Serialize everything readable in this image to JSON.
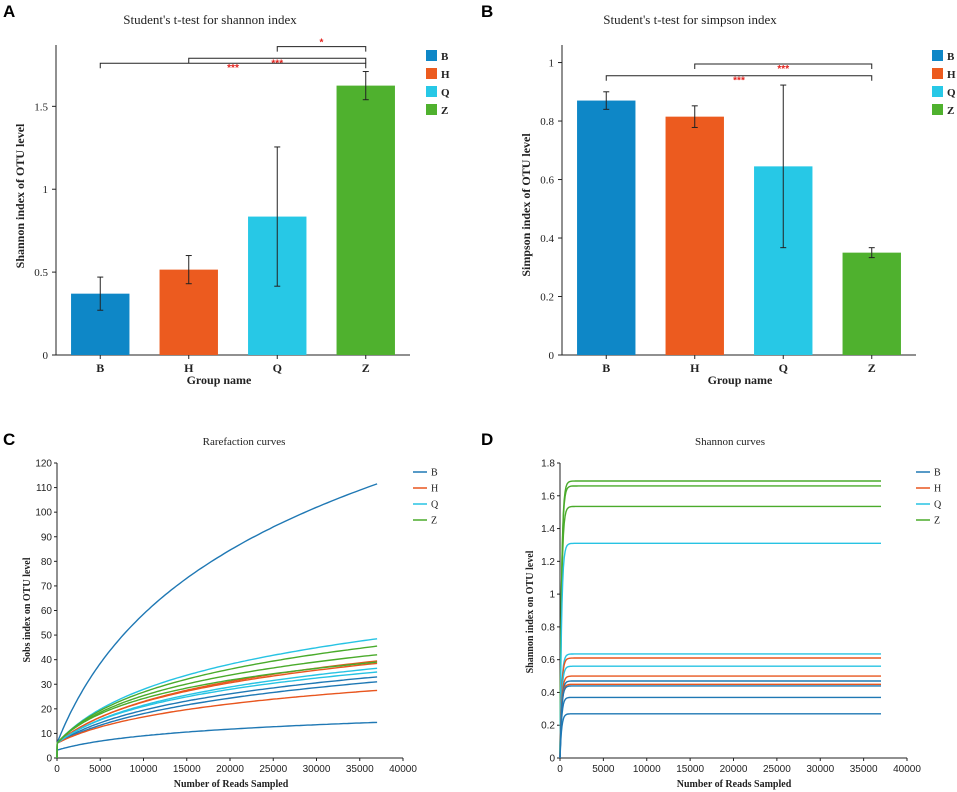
{
  "chart_data": [
    {
      "panel": "A",
      "type": "bar",
      "title": "Student's t-test for shannon index",
      "xlabel": "Group name",
      "ylabel": "Shannon index of OTU level",
      "ylim": [
        0,
        1.87
      ],
      "yticks": [
        0,
        0.5,
        1,
        1.5
      ],
      "ytick_labels": [
        "0",
        "0.5",
        "1",
        "1.5"
      ],
      "categories": [
        "B",
        "H",
        "Q",
        "Z"
      ],
      "values": [
        0.37,
        0.515,
        0.835,
        1.625
      ],
      "errors": [
        0.1,
        0.085,
        0.42,
        0.085
      ],
      "colors": [
        "#0e87c7",
        "#ec5b1f",
        "#27c8e6",
        "#4fb12e"
      ],
      "legend": [
        "B",
        "H",
        "Q",
        "Z"
      ],
      "comparisons": [
        {
          "from": "Q",
          "to": "Z",
          "label": "*",
          "level": 1.86
        },
        {
          "from": "H",
          "to": "Z",
          "label": "***",
          "level": 1.79
        },
        {
          "from": "B",
          "to": "Z",
          "label": "***",
          "level": 1.76
        }
      ]
    },
    {
      "panel": "B",
      "type": "bar",
      "title": "Student's t-test for simpson index",
      "xlabel": "Group name",
      "ylabel": "Simpson index of OTU level",
      "ylim": [
        0,
        1.06
      ],
      "yticks": [
        0,
        0.2,
        0.4,
        0.6,
        0.8,
        1
      ],
      "ytick_labels": [
        "0",
        "0.2",
        "0.4",
        "0.6",
        "0.8",
        "1"
      ],
      "categories": [
        "B",
        "H",
        "Q",
        "Z"
      ],
      "values": [
        0.87,
        0.815,
        0.645,
        0.35
      ],
      "errors": [
        0.03,
        0.037,
        0.278,
        0.017
      ],
      "colors": [
        "#0e87c7",
        "#ec5b1f",
        "#27c8e6",
        "#4fb12e"
      ],
      "legend": [
        "B",
        "H",
        "Q",
        "Z"
      ],
      "comparisons": [
        {
          "from": "H",
          "to": "Z",
          "label": "***",
          "level": 0.995
        },
        {
          "from": "B",
          "to": "Z",
          "label": "***",
          "level": 0.955
        }
      ]
    },
    {
      "panel": "C",
      "type": "line",
      "title": "Rarefaction curves",
      "xlabel": "Number of Reads Sampled",
      "ylabel": "Sobs index on OTU level",
      "xlim": [
        0,
        40000
      ],
      "ylim": [
        0,
        120
      ],
      "xticks": [
        0,
        5000,
        10000,
        15000,
        20000,
        25000,
        30000,
        35000,
        40000
      ],
      "xtick_labels": [
        "0",
        "5000",
        "10000",
        "15000",
        "20000",
        "25000",
        "30000",
        "35000",
        "40000"
      ],
      "yticks": [
        0,
        10,
        20,
        30,
        40,
        50,
        60,
        70,
        80,
        90,
        100,
        110,
        120
      ],
      "ytick_labels": [
        "0",
        "10",
        "20",
        "30",
        "40",
        "50",
        "60",
        "70",
        "80",
        "90",
        "100",
        "110",
        "120"
      ],
      "legend": [
        "B",
        "H",
        "Q",
        "Z"
      ],
      "x_end": 37000,
      "series": [
        {
          "name": "B",
          "color": "#1f78b4",
          "final": 111.5,
          "k": 6000
        },
        {
          "name": "B",
          "color": "#1f78b4",
          "final": 33,
          "k": 6000
        },
        {
          "name": "B",
          "color": "#1f78b4",
          "final": 31,
          "k": 7000
        },
        {
          "name": "B",
          "color": "#1f78b4",
          "final": 14.5,
          "k": 5000
        },
        {
          "name": "H",
          "color": "#e8561f",
          "final": 39.5,
          "k": 5500
        },
        {
          "name": "H",
          "color": "#e8561f",
          "final": 38.5,
          "k": 5000
        },
        {
          "name": "H",
          "color": "#e8561f",
          "final": 27.5,
          "k": 6000
        },
        {
          "name": "Q",
          "color": "#27c3e3",
          "final": 48.5,
          "k": 5000
        },
        {
          "name": "Q",
          "color": "#27c3e3",
          "final": 36.5,
          "k": 5500
        },
        {
          "name": "Q",
          "color": "#27c3e3",
          "final": 35,
          "k": 5000
        },
        {
          "name": "Z",
          "color": "#4aab2b",
          "final": 45.5,
          "k": 4500
        },
        {
          "name": "Z",
          "color": "#4aab2b",
          "final": 42,
          "k": 4000
        },
        {
          "name": "Z",
          "color": "#4aab2b",
          "final": 39,
          "k": 3500
        }
      ]
    },
    {
      "panel": "D",
      "type": "line",
      "title": "Shannon curves",
      "xlabel": "Number of Reads Sampled",
      "ylabel": "Shannon index on OTU level",
      "xlim": [
        0,
        40000
      ],
      "ylim": [
        0,
        1.8
      ],
      "xticks": [
        0,
        5000,
        10000,
        15000,
        20000,
        25000,
        30000,
        35000,
        40000
      ],
      "xtick_labels": [
        "0",
        "5000",
        "10000",
        "15000",
        "20000",
        "25000",
        "30000",
        "35000",
        "40000"
      ],
      "yticks": [
        0,
        0.2,
        0.4,
        0.6,
        0.8,
        1,
        1.2,
        1.4,
        1.6,
        1.8
      ],
      "ytick_labels": [
        "0",
        "0.2",
        "0.4",
        "0.6",
        "0.8",
        "1",
        "1.2",
        "1.4",
        "1.6",
        "1.8"
      ],
      "legend": [
        "B",
        "H",
        "Q",
        "Z"
      ],
      "x_end": 37000,
      "series": [
        {
          "name": "Z",
          "color": "#4aab2b",
          "final": 1.69
        },
        {
          "name": "Z",
          "color": "#4aab2b",
          "final": 1.66
        },
        {
          "name": "Z",
          "color": "#4aab2b",
          "final": 1.535
        },
        {
          "name": "Q",
          "color": "#27c3e3",
          "final": 1.31
        },
        {
          "name": "Q",
          "color": "#27c3e3",
          "final": 0.635
        },
        {
          "name": "H",
          "color": "#e8561f",
          "final": 0.61
        },
        {
          "name": "Q",
          "color": "#27c3e3",
          "final": 0.56
        },
        {
          "name": "H",
          "color": "#e8561f",
          "final": 0.5
        },
        {
          "name": "B",
          "color": "#1f78b4",
          "final": 0.47
        },
        {
          "name": "H",
          "color": "#e8561f",
          "final": 0.45
        },
        {
          "name": "B",
          "color": "#1f78b4",
          "final": 0.44
        },
        {
          "name": "B",
          "color": "#1f78b4",
          "final": 0.37
        },
        {
          "name": "B",
          "color": "#1f78b4",
          "final": 0.27
        }
      ]
    }
  ],
  "panel_labels": [
    "A",
    "B",
    "C",
    "D"
  ]
}
